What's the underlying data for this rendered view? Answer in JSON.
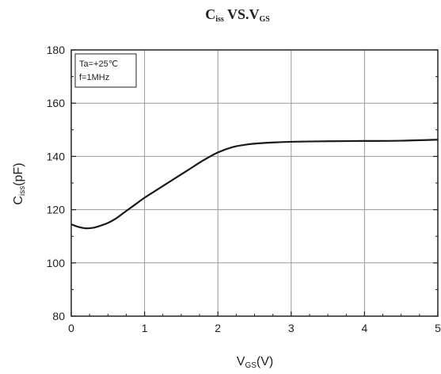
{
  "chart_data": {
    "type": "line",
    "title": {
      "main": "C",
      "sub": "iss",
      "middle": " VS.V",
      "sub2": "GS"
    },
    "xlabel": {
      "main": "V",
      "sub": "GS",
      "rest": "(V)"
    },
    "ylabel": {
      "main": "C",
      "sub": "iss",
      "rest": "(pF)"
    },
    "xlim": [
      0,
      5
    ],
    "ylim": [
      80,
      180
    ],
    "xticks": [
      "0",
      "1",
      "2",
      "3",
      "4",
      "5"
    ],
    "yticks": [
      "80",
      "100",
      "120",
      "140",
      "160",
      "180"
    ],
    "grid": true,
    "legend_box": {
      "line1": "Ta=+25℃",
      "line2": "f=1MHz",
      "placement": "top-left"
    },
    "series": [
      {
        "color": "#1a1a1a",
        "x": [
          0,
          0.1,
          0.2,
          0.3,
          0.4,
          0.5,
          0.6,
          0.7,
          0.8,
          0.9,
          1.0,
          1.2,
          1.4,
          1.6,
          1.8,
          2.0,
          2.2,
          2.4,
          2.6,
          2.8,
          3.0,
          3.5,
          4.0,
          4.5,
          5.0
        ],
        "y": [
          114.5,
          113.5,
          113.0,
          113.2,
          114.0,
          115.0,
          116.5,
          118.5,
          120.5,
          122.5,
          124.5,
          128.0,
          131.5,
          135.0,
          138.5,
          141.5,
          143.5,
          144.5,
          145.0,
          145.3,
          145.5,
          145.7,
          145.8,
          145.9,
          146.3
        ]
      }
    ]
  }
}
